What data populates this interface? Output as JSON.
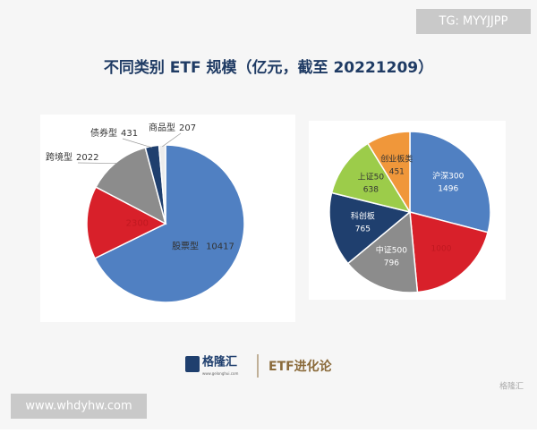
{
  "watermark": "TG: MYYJJPP",
  "title": "不同类别 ETF 规模（亿元，截至 20221209）",
  "chart_data": [
    {
      "type": "pie",
      "categories": [
        "股票型",
        null,
        "跨境型",
        "债券型",
        "商品型"
      ],
      "values": [
        10417,
        2300,
        2022,
        431,
        207
      ],
      "colors": [
        "#5080c2",
        "#d8202a",
        "#8c8c8c",
        "#1f3f6e",
        "#ececec"
      ]
    },
    {
      "type": "pie",
      "categories": [
        "沪深300",
        null,
        "中证500",
        "科创板",
        "上证50",
        "创业板类"
      ],
      "values": [
        1496,
        1000,
        796,
        765,
        638,
        451
      ],
      "colors": [
        "#5080c2",
        "#d8202a",
        "#8c8c8c",
        "#1f3f6e",
        "#9ccc4a",
        "#f0973a"
      ]
    }
  ],
  "footer": {
    "brand": "格隆汇",
    "brand_url": "www.gelonghui.com",
    "column": "ETF进化论",
    "mark": "格隆汇"
  },
  "site": "www.whdyhw.com"
}
